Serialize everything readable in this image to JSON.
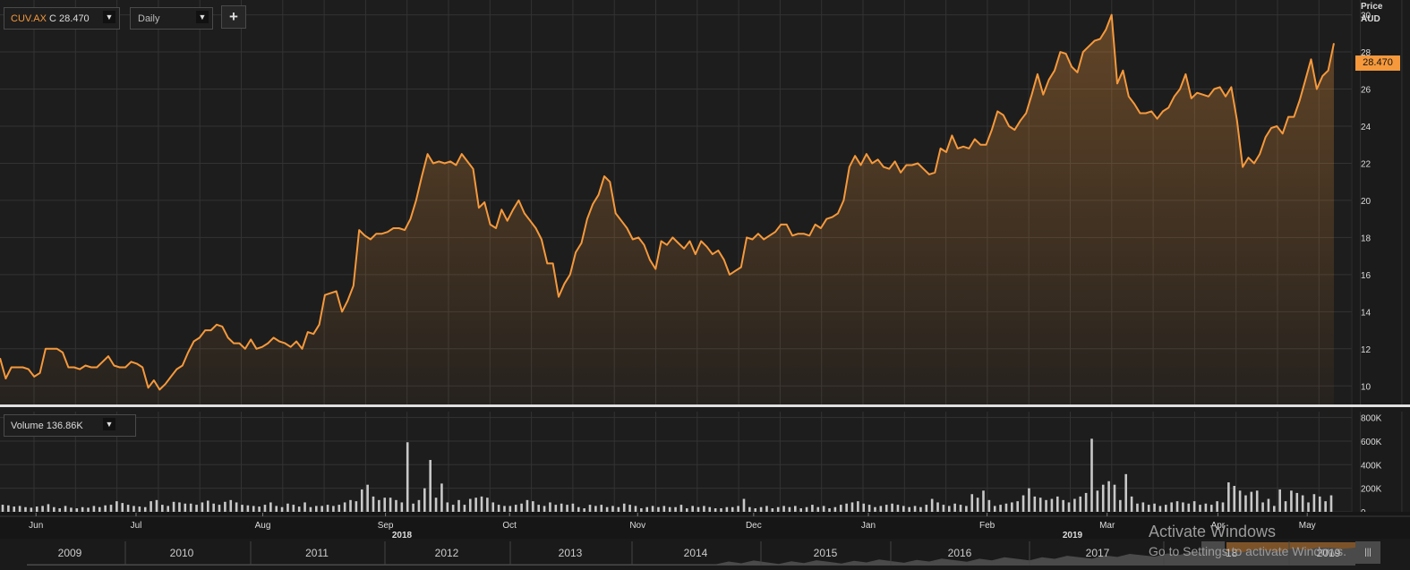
{
  "toolbar": {
    "symbol": "CUV.AX",
    "close_prefix": "C",
    "close_value": "28.470",
    "period": "Daily",
    "add_label": "+"
  },
  "volume_box": {
    "label": "Volume",
    "value": "136.86K"
  },
  "price_axis": {
    "title": "Price",
    "currency": "AUD",
    "last_price_label": "28.470"
  },
  "colors": {
    "line": "#f5993c",
    "background": "#1b1b1b",
    "volume_bars": "#c8c8c8",
    "grid": "#333333"
  },
  "watermark": {
    "line1": "Activate Windows",
    "line2": "Go to Settings to activate Windows."
  },
  "chart_data": [
    {
      "type": "area",
      "title": "",
      "ylabel": "Price AUD",
      "ylim": [
        9,
        30.8
      ],
      "yticks": [
        10,
        12,
        14,
        16,
        18,
        20,
        22,
        24,
        26,
        28,
        30
      ],
      "grid": true,
      "month_labels": [
        "Jun",
        "Jul",
        "Aug",
        "Sep",
        "Oct",
        "Nov",
        "Dec",
        "Jan",
        "Feb",
        "Mar",
        "Apr",
        "May"
      ],
      "year_labels": [
        "2018",
        "2019"
      ],
      "series": [
        {
          "values": [
            11.5,
            10.4,
            11.0,
            11.0,
            11.0,
            10.9,
            10.5,
            10.7,
            12.0,
            12.0,
            12.0,
            11.8,
            11.0,
            11.0,
            10.9,
            11.1,
            11.0,
            11.0,
            11.3,
            11.6,
            11.1,
            11.0,
            11.0,
            11.3,
            11.2,
            11.0,
            9.9,
            10.3,
            9.8,
            10.1,
            10.5,
            10.9,
            11.1,
            11.8,
            12.4,
            12.6,
            13.0,
            13.0,
            13.3,
            13.2,
            12.6,
            12.3,
            12.3,
            12.0,
            12.5,
            12.0,
            12.1,
            12.3,
            12.6,
            12.4,
            12.3,
            12.1,
            12.4,
            12.0,
            12.9,
            12.8,
            13.3,
            14.9,
            15.0,
            15.1,
            14.0,
            14.6,
            15.4,
            18.4,
            18.1,
            17.9,
            18.2,
            18.2,
            18.3,
            18.5,
            18.5,
            18.4,
            19.0,
            20.0,
            21.3,
            22.5,
            22.0,
            22.1,
            22.0,
            22.1,
            21.9,
            22.5,
            22.1,
            21.7,
            19.6,
            19.9,
            18.7,
            18.5,
            19.5,
            18.9,
            19.5,
            20.0,
            19.3,
            18.9,
            18.5,
            17.9,
            16.6,
            16.6,
            14.8,
            15.5,
            16.0,
            17.2,
            17.7,
            19.0,
            19.8,
            20.3,
            21.3,
            21.0,
            19.3,
            18.9,
            18.5,
            17.9,
            18.0,
            17.6,
            16.8,
            16.3,
            17.8,
            17.6,
            18.0,
            17.7,
            17.4,
            17.8,
            17.1,
            17.8,
            17.5,
            17.1,
            17.3,
            16.8,
            16.0,
            16.2,
            16.4,
            18.0,
            17.9,
            18.2,
            17.9,
            18.1,
            18.3,
            18.7,
            18.7,
            18.1,
            18.2,
            18.2,
            18.1,
            18.7,
            18.5,
            19.0,
            19.1,
            19.3,
            20.0,
            21.8,
            22.4,
            21.9,
            22.5,
            22.0,
            22.2,
            21.8,
            21.7,
            22.1,
            21.5,
            21.9,
            21.9,
            22.0,
            21.7,
            21.4,
            21.5,
            22.8,
            22.6,
            23.5,
            22.8,
            22.9,
            22.8,
            23.3,
            23.0,
            23.0,
            23.8,
            24.8,
            24.6,
            24.0,
            23.8,
            24.3,
            24.7,
            25.7,
            26.8,
            25.7,
            26.5,
            27.0,
            28.0,
            27.9,
            27.2,
            26.9,
            28.0,
            28.3,
            28.6,
            28.7,
            29.2,
            30.0,
            26.3,
            27.0,
            25.6,
            25.2,
            24.7,
            24.7,
            24.8,
            24.4,
            24.8,
            25.0,
            25.6,
            26.0,
            26.8,
            25.5,
            25.8,
            25.7,
            25.6,
            26.0,
            26.1,
            25.6,
            26.1,
            24.3,
            21.8,
            22.3,
            22.0,
            22.5,
            23.4,
            23.9,
            24.0,
            23.6,
            24.5,
            24.5,
            25.4,
            26.5,
            27.6,
            26.0,
            26.7,
            27.0,
            28.47
          ]
        }
      ]
    },
    {
      "type": "bar",
      "title": "",
      "ylabel": "Volume",
      "ylim": [
        0,
        850000
      ],
      "yticks": [
        0,
        200000,
        400000,
        600000,
        800000
      ],
      "ytick_labels": [
        "0",
        "200K",
        "400K",
        "600K",
        "800K"
      ],
      "series": [
        {
          "name": "Volume",
          "values": [
            60000,
            55000,
            45000,
            50000,
            40000,
            35000,
            45000,
            50000,
            65000,
            40000,
            30000,
            50000,
            35000,
            30000,
            40000,
            35000,
            50000,
            40000,
            55000,
            60000,
            90000,
            75000,
            60000,
            50000,
            45000,
            40000,
            90000,
            100000,
            60000,
            50000,
            85000,
            80000,
            70000,
            70000,
            60000,
            80000,
            95000,
            70000,
            60000,
            85000,
            100000,
            80000,
            60000,
            55000,
            50000,
            45000,
            60000,
            80000,
            50000,
            40000,
            70000,
            60000,
            45000,
            80000,
            40000,
            50000,
            50000,
            60000,
            50000,
            60000,
            80000,
            100000,
            90000,
            190000,
            230000,
            130000,
            100000,
            120000,
            120000,
            100000,
            80000,
            590000,
            70000,
            100000,
            200000,
            440000,
            120000,
            240000,
            80000,
            60000,
            100000,
            60000,
            110000,
            120000,
            130000,
            120000,
            80000,
            60000,
            50000,
            50000,
            60000,
            70000,
            100000,
            90000,
            60000,
            50000,
            80000,
            60000,
            70000,
            60000,
            70000,
            40000,
            30000,
            60000,
            50000,
            60000,
            40000,
            50000,
            40000,
            70000,
            60000,
            50000,
            30000,
            40000,
            50000,
            40000,
            50000,
            40000,
            40000,
            60000,
            30000,
            50000,
            40000,
            50000,
            40000,
            30000,
            30000,
            40000,
            40000,
            50000,
            110000,
            40000,
            30000,
            40000,
            50000,
            30000,
            40000,
            50000,
            40000,
            50000,
            30000,
            40000,
            60000,
            40000,
            50000,
            30000,
            40000,
            60000,
            70000,
            80000,
            90000,
            70000,
            60000,
            40000,
            50000,
            60000,
            70000,
            60000,
            50000,
            40000,
            50000,
            40000,
            60000,
            110000,
            80000,
            60000,
            50000,
            70000,
            60000,
            50000,
            150000,
            120000,
            180000,
            100000,
            50000,
            60000,
            70000,
            80000,
            90000,
            140000,
            200000,
            130000,
            120000,
            100000,
            110000,
            130000,
            100000,
            80000,
            110000,
            130000,
            160000,
            620000,
            180000,
            230000,
            260000,
            230000,
            100000,
            320000,
            130000,
            70000,
            80000,
            60000,
            70000,
            50000,
            60000,
            80000,
            90000,
            80000,
            70000,
            90000,
            60000,
            70000,
            60000,
            90000,
            80000,
            250000,
            220000,
            180000,
            140000,
            170000,
            180000,
            80000,
            110000,
            50000,
            190000,
            90000,
            180000,
            160000,
            140000,
            80000,
            150000,
            130000,
            90000,
            140000
          ]
        }
      ]
    }
  ],
  "navigator": {
    "year_labels": [
      "2009",
      "2010",
      "2011",
      "2012",
      "2013",
      "2014",
      "2015",
      "2016",
      "2017",
      "2018",
      "2019"
    ],
    "scroll_label": "|||"
  }
}
